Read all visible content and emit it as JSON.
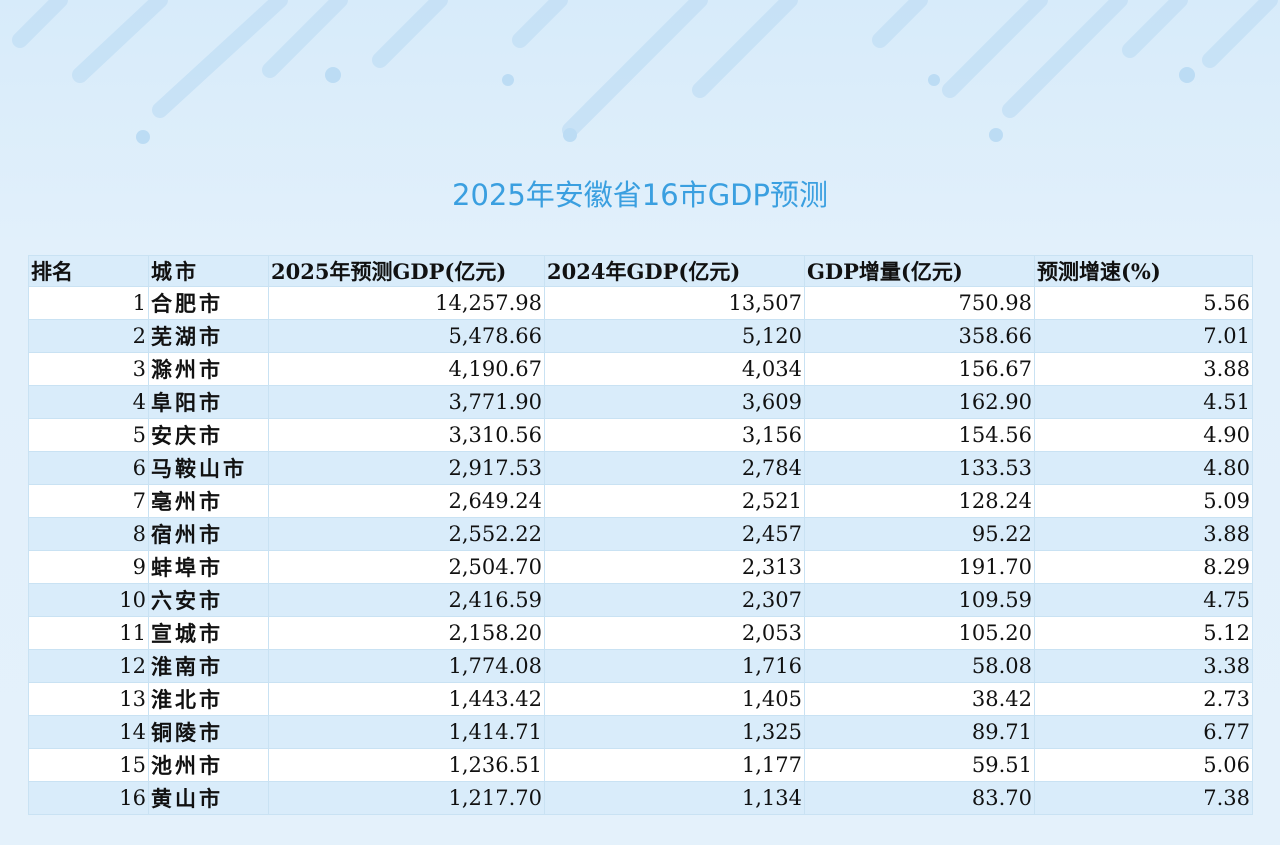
{
  "title": "2025年安徽省16市GDP预测",
  "colors": {
    "title": "#3a9fe0",
    "row_alt": "#d9ecfa",
    "background": "#e2f0fb"
  },
  "table": {
    "headers": [
      "排名",
      "城市",
      "2025年预测GDP(亿元)",
      "2024年GDP(亿元)",
      "GDP增量(亿元)",
      "预测增速(%)"
    ],
    "rows": [
      [
        "1",
        "合肥市",
        "14,257.98",
        "13,507",
        "750.98",
        "5.56"
      ],
      [
        "2",
        "芜湖市",
        "5,478.66",
        "5,120",
        "358.66",
        "7.01"
      ],
      [
        "3",
        "滁州市",
        "4,190.67",
        "4,034",
        "156.67",
        "3.88"
      ],
      [
        "4",
        "阜阳市",
        "3,771.90",
        "3,609",
        "162.90",
        "4.51"
      ],
      [
        "5",
        "安庆市",
        "3,310.56",
        "3,156",
        "154.56",
        "4.90"
      ],
      [
        "6",
        "马鞍山市",
        "2,917.53",
        "2,784",
        "133.53",
        "4.80"
      ],
      [
        "7",
        "亳州市",
        "2,649.24",
        "2,521",
        "128.24",
        "5.09"
      ],
      [
        "8",
        "宿州市",
        "2,552.22",
        "2,457",
        "95.22",
        "3.88"
      ],
      [
        "9",
        "蚌埠市",
        "2,504.70",
        "2,313",
        "191.70",
        "8.29"
      ],
      [
        "10",
        "六安市",
        "2,416.59",
        "2,307",
        "109.59",
        "4.75"
      ],
      [
        "11",
        "宣城市",
        "2,158.20",
        "2,053",
        "105.20",
        "5.12"
      ],
      [
        "12",
        "淮南市",
        "1,774.08",
        "1,716",
        "58.08",
        "3.38"
      ],
      [
        "13",
        "淮北市",
        "1,443.42",
        "1,405",
        "38.42",
        "2.73"
      ],
      [
        "14",
        "铜陵市",
        "1,414.71",
        "1,325",
        "89.71",
        "6.77"
      ],
      [
        "15",
        "池州市",
        "1,236.51",
        "1,177",
        "59.51",
        "5.06"
      ],
      [
        "16",
        "黄山市",
        "1,217.70",
        "1,134",
        "83.70",
        "7.38"
      ]
    ]
  }
}
